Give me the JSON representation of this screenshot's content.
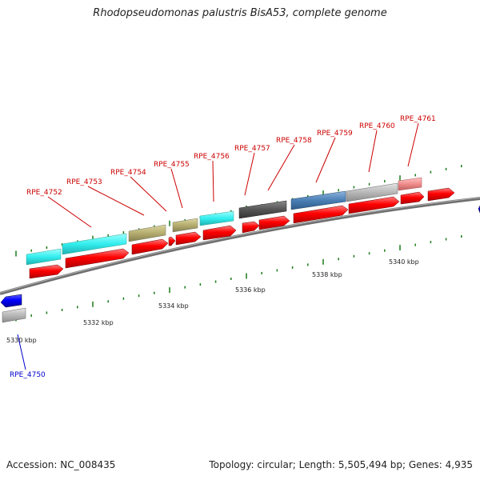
{
  "title": "Rhodopseudomonas palustris BisA53, complete genome",
  "footer": {
    "accession": "Accession: NC_008435",
    "topology": "Topology: circular; Length: 5,505,494 bp; Genes: 4,935"
  },
  "scale_labels": [
    "5330 kbp",
    "5332 kbp",
    "5334 kbp",
    "5336 kbp",
    "5338 kbp",
    "5340 kbp"
  ],
  "gene_labels": [
    {
      "text": "RPE_4750",
      "color": "#0000cc"
    },
    {
      "text": "RPE_4752",
      "color": "#cc0000"
    },
    {
      "text": "RPE_4753",
      "color": "#cc0000"
    },
    {
      "text": "RPE_4754",
      "color": "#cc0000"
    },
    {
      "text": "RPE_4755",
      "color": "#cc0000"
    },
    {
      "text": "RPE_4756",
      "color": "#cc0000"
    },
    {
      "text": "RPE_4757",
      "color": "#cc0000"
    },
    {
      "text": "RPE_4758",
      "color": "#cc0000"
    },
    {
      "text": "RPE_4759",
      "color": "#cc0000"
    },
    {
      "text": "RPE_4760",
      "color": "#cc0000"
    },
    {
      "text": "RPE_4761",
      "color": "#cc0000"
    }
  ],
  "colors": {
    "cds": "#ff0000",
    "reverse_cds": "#0000ff",
    "cog_cyan": "#33eeee",
    "cog_olive": "#b5ad6f",
    "cog_dark": "#555555",
    "cog_steel": "#4a7fb5",
    "cog_silver": "#b8b8b8",
    "cog_pink": "#f08c8c",
    "backbone": "#808080",
    "tick": "#1a7a1a"
  }
}
